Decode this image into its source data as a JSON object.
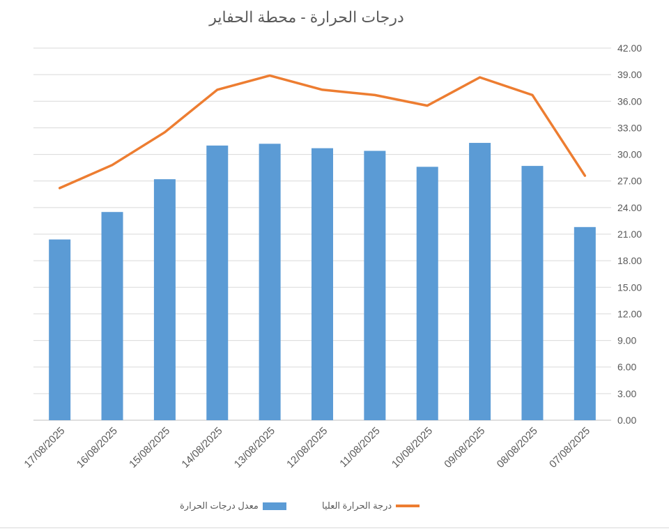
{
  "chart_data": {
    "type": "bar",
    "title": "درجات الحرارة - محطة الحفاير",
    "categories": [
      "17/08/2025",
      "16/08/2025",
      "15/08/2025",
      "14/08/2025",
      "13/08/2025",
      "12/08/2025",
      "11/08/2025",
      "10/08/2025",
      "09/08/2025",
      "08/08/2025",
      "07/08/2025"
    ],
    "series": [
      {
        "name": "معدل درجات الحرارة",
        "type": "bar",
        "color": "#5B9BD5",
        "values": [
          20.4,
          23.5,
          27.2,
          31.0,
          31.2,
          30.7,
          30.4,
          28.6,
          31.3,
          28.7,
          21.8
        ]
      },
      {
        "name": "درجة الحرارة العليا",
        "type": "line",
        "color": "#ED7D31",
        "values": [
          26.2,
          28.8,
          32.5,
          37.3,
          38.9,
          37.3,
          36.7,
          35.5,
          38.7,
          36.7,
          27.6
        ]
      }
    ],
    "ylim": [
      0,
      42
    ],
    "y_ticks": [
      "0.00",
      "3.00",
      "6.00",
      "9.00",
      "12.00",
      "15.00",
      "18.00",
      "21.00",
      "24.00",
      "27.00",
      "30.00",
      "33.00",
      "36.00",
      "39.00",
      "42.00"
    ],
    "y_axis_side": "right",
    "grid": true,
    "legend_position": "bottom"
  }
}
